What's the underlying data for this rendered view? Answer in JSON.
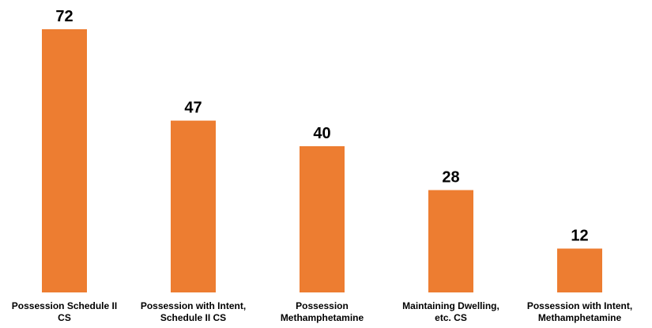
{
  "chart_data": {
    "type": "bar",
    "categories": [
      "Possession Schedule II CS",
      "Possession with Intent, Schedule II CS",
      "Possession Methamphetamine",
      "Maintaining Dwelling, etc. CS",
      "Possession with Intent, Methamphetamine"
    ],
    "category_lines": [
      [
        "Possession Schedule II",
        "CS"
      ],
      [
        "Possession with Intent,",
        "Schedule II CS"
      ],
      [
        "Possession",
        "Methamphetamine"
      ],
      [
        "Maintaining Dwelling,",
        "etc. CS"
      ],
      [
        "Possession with Intent,",
        "Methamphetamine"
      ]
    ],
    "values": [
      72,
      47,
      40,
      28,
      12
    ],
    "data_labels": [
      "72",
      "47",
      "40",
      "28",
      "12"
    ],
    "title": "",
    "xlabel": "",
    "ylabel": "",
    "ylim": [
      0,
      72
    ],
    "grid": false,
    "legend": "none",
    "bar_color": "#ED7D31"
  }
}
